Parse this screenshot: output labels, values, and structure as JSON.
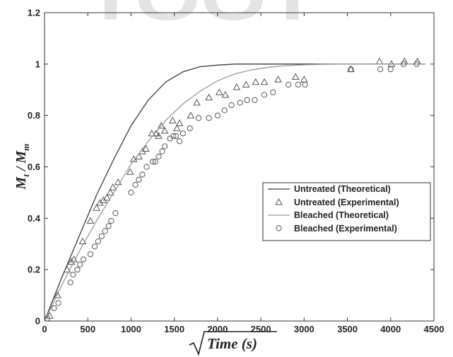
{
  "chart_data": {
    "type": "scatter",
    "xlabel": "Time (s)",
    "ylabel": "Mt/Mm",
    "xlim": [
      0,
      4500
    ],
    "ylim": [
      0,
      1.2
    ],
    "x_ticks": [
      0,
      500,
      1000,
      1500,
      2000,
      2500,
      3000,
      3500,
      4000,
      4500
    ],
    "y_ticks": [
      0,
      0.2,
      0.4,
      0.6,
      0.8,
      1,
      1.2
    ],
    "legend_position": "center-right",
    "grid": false,
    "series": [
      {
        "name": "Untreated (Theoretical)",
        "style": "line",
        "color": "#3c3c3c",
        "x": [
          0,
          200,
          400,
          600,
          800,
          1000,
          1200,
          1400,
          1600,
          1800,
          2000,
          2200,
          2400,
          2600,
          2800,
          3000,
          3200,
          3400,
          3600,
          4000,
          4400
        ],
        "y": [
          0,
          0.17,
          0.33,
          0.49,
          0.63,
          0.76,
          0.86,
          0.93,
          0.97,
          0.99,
          0.996,
          1.0,
          1.0,
          1.0,
          1.0,
          1.0,
          1.0,
          1.0,
          1.0,
          1.0,
          1.0
        ]
      },
      {
        "name": "Untreated (Experimental)",
        "style": "triangle",
        "color": "#555555",
        "x": [
          60,
          150,
          260,
          310,
          340,
          440,
          530,
          600,
          640,
          680,
          720,
          760,
          790,
          850,
          990,
          1030,
          1090,
          1130,
          1170,
          1240,
          1290,
          1320,
          1350,
          1390,
          1480,
          1530,
          1560,
          1690,
          1760,
          1900,
          2020,
          2090,
          2220,
          2330,
          2440,
          2540,
          2700,
          2900,
          3000,
          3540,
          3870,
          4010,
          4160,
          4310
        ],
        "y": [
          0.02,
          0.1,
          0.2,
          0.23,
          0.24,
          0.31,
          0.39,
          0.44,
          0.46,
          0.47,
          0.48,
          0.5,
          0.52,
          0.54,
          0.58,
          0.63,
          0.64,
          0.66,
          0.67,
          0.73,
          0.73,
          0.72,
          0.76,
          0.74,
          0.78,
          0.75,
          0.77,
          0.8,
          0.85,
          0.87,
          0.89,
          0.88,
          0.91,
          0.92,
          0.93,
          0.93,
          0.94,
          0.95,
          0.94,
          0.98,
          1.01,
          1.0,
          1.01,
          1.01
        ]
      },
      {
        "name": "Bleached (Theoretical)",
        "style": "line",
        "color": "#9a9a9a",
        "x": [
          0,
          200,
          400,
          600,
          800,
          1000,
          1200,
          1400,
          1600,
          1800,
          2000,
          2200,
          2400,
          2600,
          2800,
          3000,
          3200,
          3400,
          3600,
          4000,
          4400
        ],
        "y": [
          0,
          0.14,
          0.27,
          0.39,
          0.5,
          0.61,
          0.7,
          0.78,
          0.845,
          0.895,
          0.935,
          0.962,
          0.978,
          0.988,
          0.994,
          0.997,
          0.999,
          1.0,
          1.0,
          1.0,
          1.0
        ]
      },
      {
        "name": "Bleached (Experimental)",
        "style": "circle",
        "color": "#555555",
        "x": [
          30,
          110,
          160,
          300,
          330,
          380,
          410,
          450,
          530,
          580,
          620,
          660,
          700,
          740,
          770,
          820,
          1000,
          1050,
          1090,
          1130,
          1180,
          1250,
          1280,
          1320,
          1360,
          1390,
          1450,
          1490,
          1520,
          1560,
          1600,
          1680,
          1780,
          1900,
          2000,
          2080,
          2160,
          2260,
          2340,
          2430,
          2540,
          2640,
          2820,
          2930,
          3010,
          3540,
          3880,
          4000,
          4150,
          4300
        ],
        "y": [
          0.01,
          0.05,
          0.07,
          0.15,
          0.18,
          0.2,
          0.22,
          0.24,
          0.26,
          0.29,
          0.31,
          0.33,
          0.35,
          0.37,
          0.39,
          0.42,
          0.5,
          0.53,
          0.55,
          0.57,
          0.6,
          0.62,
          0.62,
          0.64,
          0.66,
          0.68,
          0.71,
          0.72,
          0.72,
          0.7,
          0.73,
          0.75,
          0.79,
          0.79,
          0.8,
          0.82,
          0.84,
          0.85,
          0.86,
          0.86,
          0.88,
          0.89,
          0.92,
          0.92,
          0.92,
          0.98,
          0.98,
          0.98,
          1.0,
          1.0
        ]
      }
    ]
  },
  "watermark": {
    "text": "TOOT",
    "color": "#e4e4e4"
  }
}
